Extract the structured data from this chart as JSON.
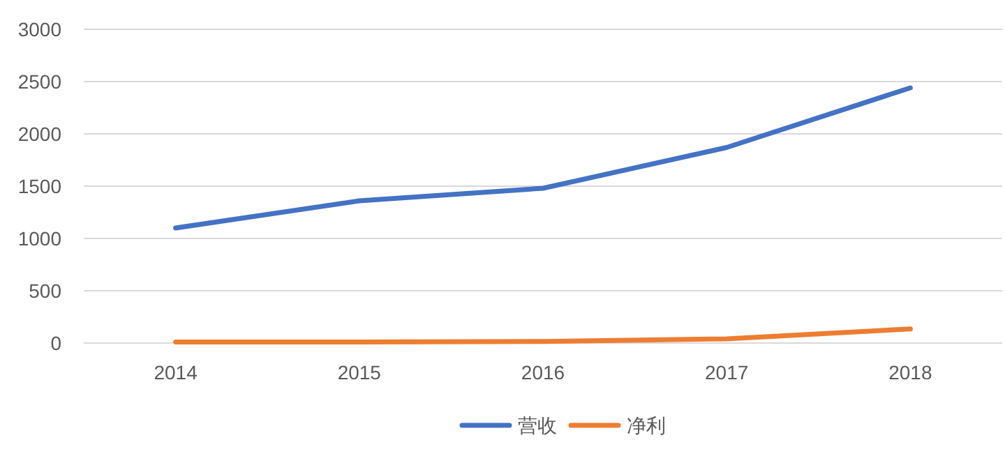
{
  "chart_data": {
    "type": "line",
    "categories": [
      "2014",
      "2015",
      "2016",
      "2017",
      "2018"
    ],
    "series": [
      {
        "name": "营收",
        "color": "#4472c4",
        "values": [
          1100,
          1360,
          1480,
          1870,
          2440
        ]
      },
      {
        "name": "净利",
        "color": "#ed7d31",
        "values": [
          10,
          10,
          15,
          40,
          135
        ]
      }
    ],
    "ylim": [
      0,
      3000
    ],
    "yticks": [
      0,
      500,
      1000,
      1500,
      2000,
      2500,
      3000
    ],
    "grid": "y",
    "legend": "bottom",
    "marker": "none",
    "line_style": "solid"
  }
}
